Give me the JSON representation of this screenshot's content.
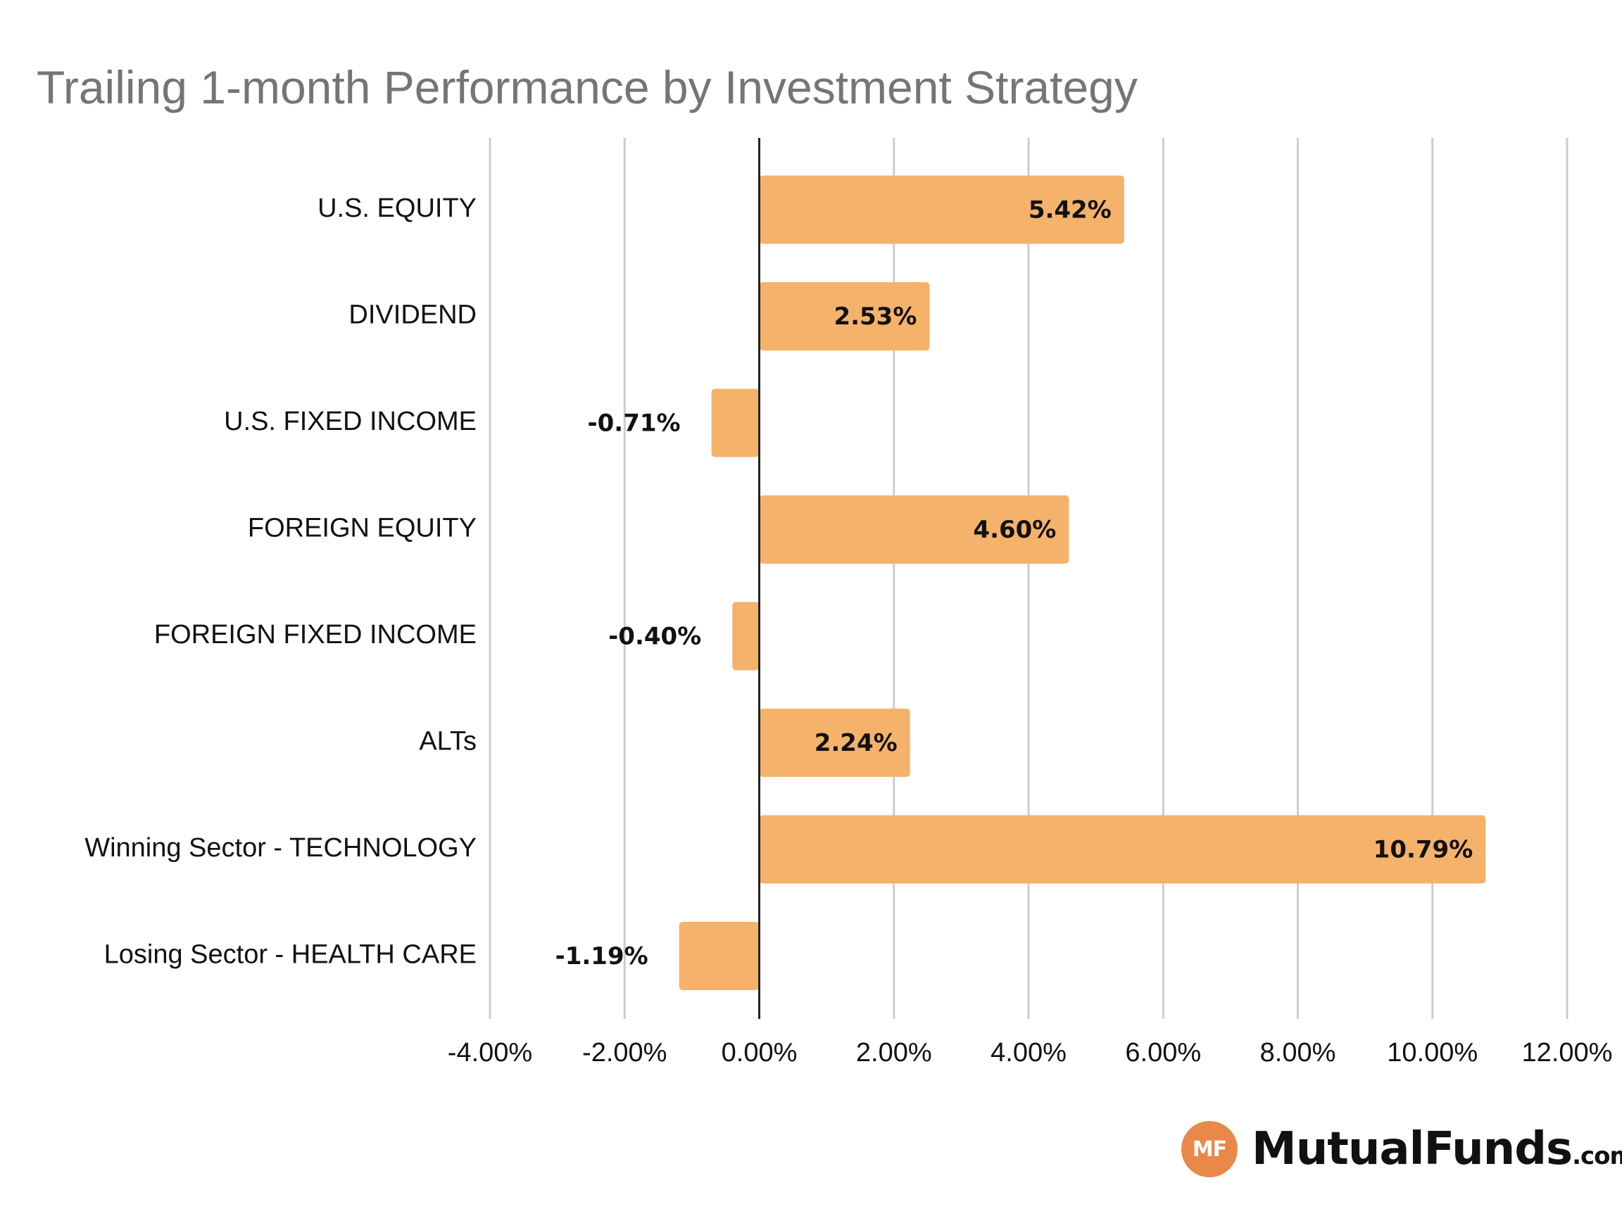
{
  "chart_data": {
    "type": "bar",
    "orientation": "horizontal",
    "title": "Trailing 1-month Performance by Investment Strategy",
    "categories": [
      "U.S. EQUITY",
      "DIVIDEND",
      "U.S. FIXED INCOME",
      "FOREIGN EQUITY",
      "FOREIGN FIXED INCOME",
      "ALTs",
      "Winning Sector - TECHNOLOGY",
      "Losing Sector - HEALTH CARE"
    ],
    "values": [
      5.42,
      2.53,
      -0.71,
      4.6,
      -0.4,
      2.24,
      10.79,
      -1.19
    ],
    "data_labels": [
      "5.42%",
      "2.53%",
      "-0.71%",
      "4.60%",
      "-0.40%",
      "2.24%",
      "10.79%",
      "-1.19%"
    ],
    "x_ticks": [
      -4,
      -2,
      0,
      2,
      4,
      6,
      8,
      10,
      12
    ],
    "x_tick_labels": [
      "-4.00%",
      "-2.00%",
      "0.00%",
      "2.00%",
      "4.00%",
      "6.00%",
      "8.00%",
      "10.00%",
      "12.00%"
    ],
    "xlim": [
      -4,
      12
    ],
    "xlabel": "",
    "ylabel": "",
    "grid": "vertical",
    "legend": "none",
    "colors": {
      "bar": "#f5b26b",
      "grid": "#cccccc",
      "zero_line": "#222222"
    }
  },
  "logo": {
    "badge_text": "MF",
    "name": "MutualFunds",
    "tld": ".com",
    "badge_color": "#e8894a"
  }
}
